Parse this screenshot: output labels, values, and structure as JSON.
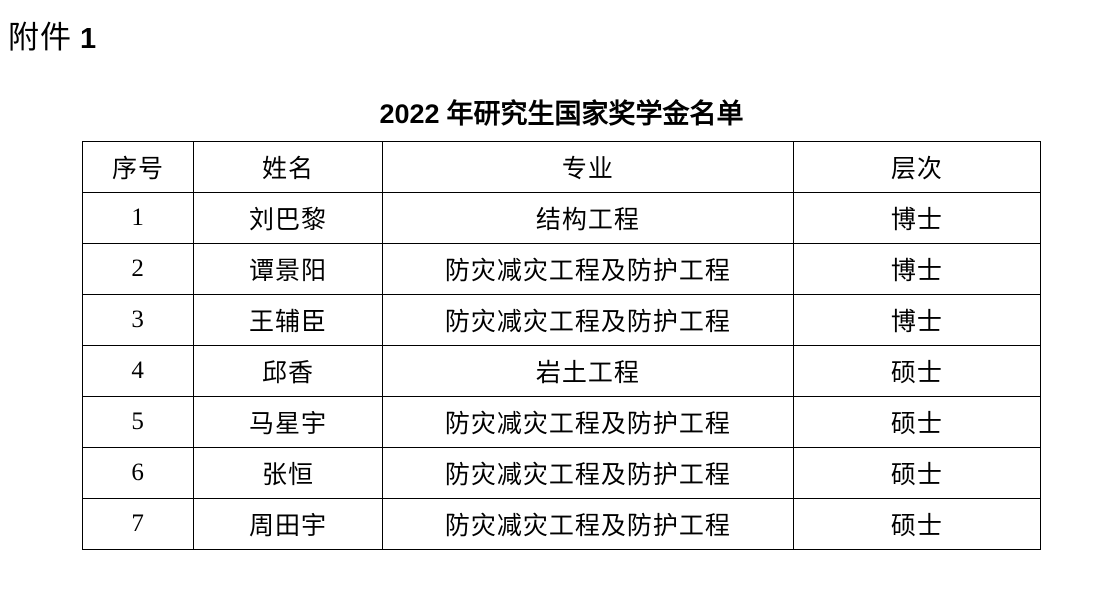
{
  "attachment": {
    "label": "附件",
    "number": "1"
  },
  "title": {
    "year": "2022",
    "rest": "年研究生国家奖学金名单"
  },
  "table": {
    "columns": [
      "序号",
      "姓名",
      "专业",
      "层次"
    ],
    "rows": [
      {
        "no": "1",
        "name": "刘巴黎",
        "major": "结构工程",
        "level": "博士"
      },
      {
        "no": "2",
        "name": "谭景阳",
        "major": "防灾减灾工程及防护工程",
        "level": "博士"
      },
      {
        "no": "3",
        "name": "王辅臣",
        "major": "防灾减灾工程及防护工程",
        "level": "博士"
      },
      {
        "no": "4",
        "name": "邱香",
        "major": "岩土工程",
        "level": "硕士"
      },
      {
        "no": "5",
        "name": "马星宇",
        "major": "防灾减灾工程及防护工程",
        "level": "硕士"
      },
      {
        "no": "6",
        "name": "张恒",
        "major": "防灾减灾工程及防护工程",
        "level": "硕士"
      },
      {
        "no": "7",
        "name": "周田宇",
        "major": "防灾减灾工程及防护工程",
        "level": "硕士"
      }
    ]
  }
}
